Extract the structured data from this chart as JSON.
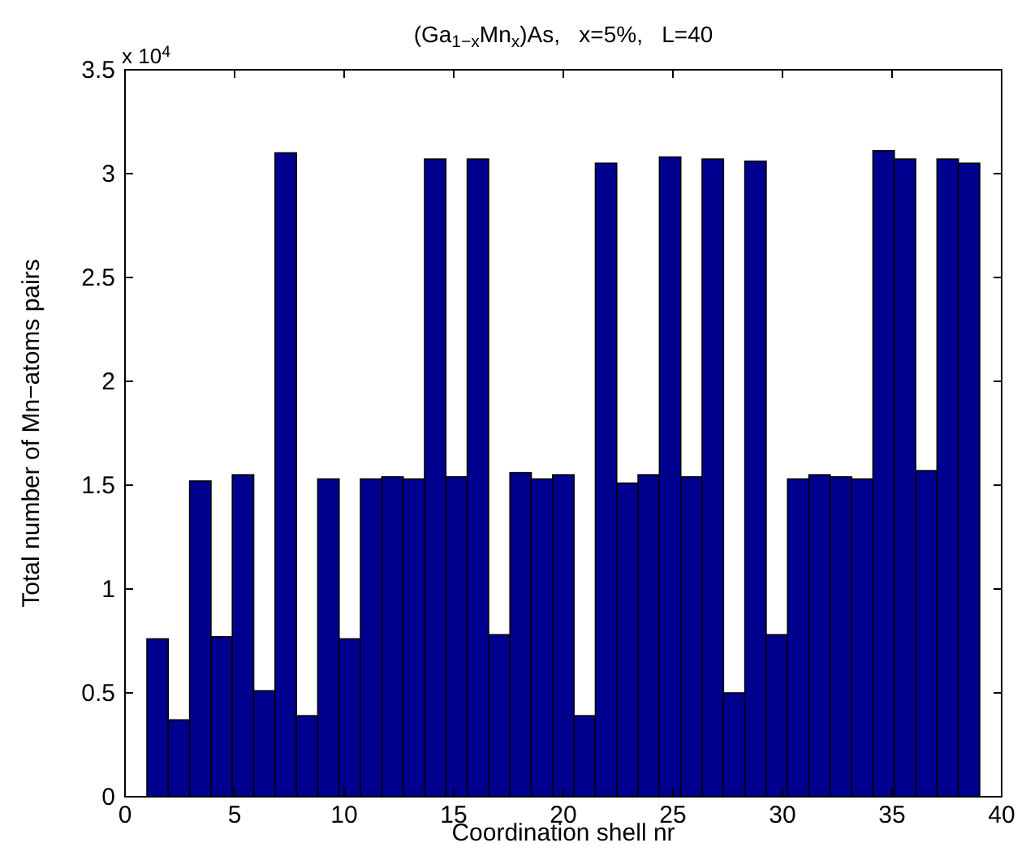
{
  "chart_data": {
    "type": "histogram",
    "title": "(Ga$_{1−x}$Mn$_{x}$)As,   x=5%,   L=40",
    "xlabel": "Coordination shell nr",
    "ylabel": "Total number of Mn−atoms pairs",
    "annotations": [
      "x 10$^{4}$"
    ],
    "bins": [
      1,
      1.974,
      2.949,
      3.923,
      4.897,
      5.872,
      6.846,
      7.821,
      8.795,
      9.769,
      10.744,
      11.718,
      12.692,
      13.667,
      14.641,
      15.615,
      16.59,
      17.564,
      18.538,
      19.513,
      20.487,
      21.462,
      22.436,
      23.41,
      24.385,
      25.359,
      26.333,
      27.308,
      28.282,
      29.256,
      30.231,
      31.205,
      32.179,
      33.154,
      34.128,
      35.103,
      36.077,
      37.051,
      38.026,
      39
    ],
    "values": [
      0.76,
      0.37,
      1.52,
      0.77,
      1.55,
      0.51,
      3.1,
      0.39,
      1.53,
      0.76,
      1.53,
      1.54,
      1.53,
      3.07,
      1.54,
      3.07,
      0.78,
      1.56,
      1.53,
      1.55,
      0.39,
      3.05,
      1.51,
      1.55,
      3.08,
      1.54,
      3.07,
      0.5,
      3.06,
      0.78,
      1.53,
      1.55,
      1.54,
      1.53,
      3.11,
      3.07,
      1.57,
      3.07,
      3.05
    ],
    "color": "#00008f",
    "xlim": [
      0,
      40
    ],
    "xticks": [
      0,
      5,
      10,
      15,
      20,
      25,
      30,
      35,
      40
    ],
    "ylim": [
      0,
      3.5
    ],
    "yticks": [
      0,
      0.5,
      1,
      1.5,
      2,
      2.5,
      3,
      3.5
    ],
    "grid": false
  }
}
